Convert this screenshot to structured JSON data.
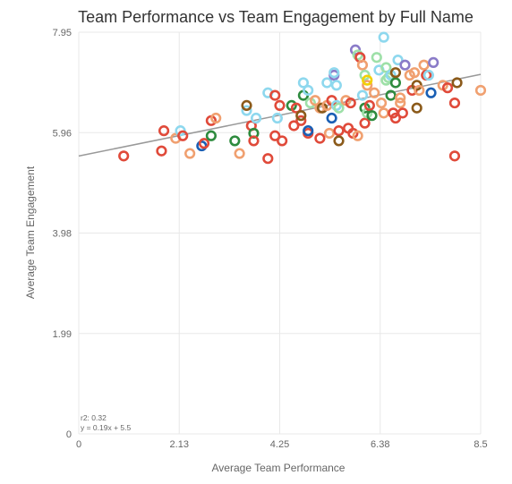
{
  "chart_data": {
    "type": "scatter",
    "title": "Team Performance vs Team Engagement by Full Name",
    "xlabel": "Average Team Performance",
    "ylabel": "Average Team Engagement",
    "xlim": [
      0,
      8.5
    ],
    "ylim": [
      0,
      7.95
    ],
    "x_ticks": [
      "0",
      "2.13",
      "4.25",
      "6.38",
      "8.5"
    ],
    "y_ticks": [
      "0",
      "1.99",
      "3.98",
      "5.96",
      "7.95"
    ],
    "grid": true,
    "regression": {
      "r2_label": "r2: 0.32",
      "equation_label": "y = 0.19x + 5.5",
      "slope": 0.19,
      "intercept": 5.5
    },
    "colors": {
      "red": "#e04a3a",
      "orange": "#f0a070",
      "lightblue": "#8ed8ee",
      "blue": "#1a5fb4",
      "green": "#2e8b3e",
      "lightgreen": "#9ee0a8",
      "brown": "#8b5a1a",
      "purple": "#8a7bc8",
      "yellow": "#f2d000",
      "trend": "#999999"
    },
    "points": [
      {
        "x": 0.95,
        "y": 5.5,
        "c": "red"
      },
      {
        "x": 1.75,
        "y": 5.6,
        "c": "red"
      },
      {
        "x": 1.8,
        "y": 6.0,
        "c": "red"
      },
      {
        "x": 2.05,
        "y": 5.85,
        "c": "orange"
      },
      {
        "x": 2.15,
        "y": 6.0,
        "c": "lightblue"
      },
      {
        "x": 2.2,
        "y": 5.9,
        "c": "red"
      },
      {
        "x": 2.35,
        "y": 5.55,
        "c": "orange"
      },
      {
        "x": 2.6,
        "y": 5.7,
        "c": "blue"
      },
      {
        "x": 2.65,
        "y": 5.75,
        "c": "red"
      },
      {
        "x": 2.8,
        "y": 5.9,
        "c": "green"
      },
      {
        "x": 2.8,
        "y": 6.2,
        "c": "red"
      },
      {
        "x": 2.9,
        "y": 6.25,
        "c": "orange"
      },
      {
        "x": 3.3,
        "y": 5.8,
        "c": "green"
      },
      {
        "x": 3.4,
        "y": 5.55,
        "c": "orange"
      },
      {
        "x": 3.55,
        "y": 6.4,
        "c": "lightblue"
      },
      {
        "x": 3.55,
        "y": 6.5,
        "c": "brown"
      },
      {
        "x": 3.65,
        "y": 6.1,
        "c": "red"
      },
      {
        "x": 3.7,
        "y": 5.95,
        "c": "green"
      },
      {
        "x": 3.7,
        "y": 5.8,
        "c": "red"
      },
      {
        "x": 3.75,
        "y": 6.25,
        "c": "lightblue"
      },
      {
        "x": 4.0,
        "y": 5.45,
        "c": "red"
      },
      {
        "x": 4.0,
        "y": 6.75,
        "c": "lightblue"
      },
      {
        "x": 4.15,
        "y": 6.7,
        "c": "red"
      },
      {
        "x": 4.15,
        "y": 5.9,
        "c": "red"
      },
      {
        "x": 4.2,
        "y": 6.25,
        "c": "lightblue"
      },
      {
        "x": 4.25,
        "y": 6.5,
        "c": "red"
      },
      {
        "x": 4.3,
        "y": 5.8,
        "c": "red"
      },
      {
        "x": 4.5,
        "y": 6.5,
        "c": "green"
      },
      {
        "x": 4.55,
        "y": 6.1,
        "c": "red"
      },
      {
        "x": 4.6,
        "y": 6.45,
        "c": "red"
      },
      {
        "x": 4.7,
        "y": 6.2,
        "c": "red"
      },
      {
        "x": 4.7,
        "y": 6.3,
        "c": "brown"
      },
      {
        "x": 4.75,
        "y": 6.95,
        "c": "lightblue"
      },
      {
        "x": 4.75,
        "y": 6.7,
        "c": "green"
      },
      {
        "x": 4.85,
        "y": 5.95,
        "c": "red"
      },
      {
        "x": 4.85,
        "y": 6.0,
        "c": "blue"
      },
      {
        "x": 4.85,
        "y": 6.8,
        "c": "lightblue"
      },
      {
        "x": 4.9,
        "y": 6.55,
        "c": "lightgreen"
      },
      {
        "x": 5.0,
        "y": 6.6,
        "c": "orange"
      },
      {
        "x": 5.1,
        "y": 6.45,
        "c": "orange"
      },
      {
        "x": 5.1,
        "y": 5.85,
        "c": "red"
      },
      {
        "x": 5.15,
        "y": 6.45,
        "c": "brown"
      },
      {
        "x": 5.25,
        "y": 6.95,
        "c": "lightblue"
      },
      {
        "x": 5.25,
        "y": 6.5,
        "c": "orange"
      },
      {
        "x": 5.3,
        "y": 5.95,
        "c": "orange"
      },
      {
        "x": 5.35,
        "y": 6.6,
        "c": "red"
      },
      {
        "x": 5.35,
        "y": 6.25,
        "c": "blue"
      },
      {
        "x": 5.4,
        "y": 7.1,
        "c": "purple"
      },
      {
        "x": 5.4,
        "y": 7.15,
        "c": "lightblue"
      },
      {
        "x": 5.45,
        "y": 6.5,
        "c": "lightblue"
      },
      {
        "x": 5.45,
        "y": 6.9,
        "c": "lightblue"
      },
      {
        "x": 5.5,
        "y": 6.45,
        "c": "lightgreen"
      },
      {
        "x": 5.5,
        "y": 6.0,
        "c": "red"
      },
      {
        "x": 5.5,
        "y": 5.8,
        "c": "brown"
      },
      {
        "x": 5.65,
        "y": 6.6,
        "c": "orange"
      },
      {
        "x": 5.7,
        "y": 6.05,
        "c": "red"
      },
      {
        "x": 5.75,
        "y": 6.55,
        "c": "red"
      },
      {
        "x": 5.8,
        "y": 5.95,
        "c": "red"
      },
      {
        "x": 5.85,
        "y": 7.6,
        "c": "purple"
      },
      {
        "x": 5.9,
        "y": 7.5,
        "c": "lightgreen"
      },
      {
        "x": 5.95,
        "y": 7.45,
        "c": "red"
      },
      {
        "x": 5.9,
        "y": 5.9,
        "c": "orange"
      },
      {
        "x": 6.0,
        "y": 7.3,
        "c": "orange"
      },
      {
        "x": 6.0,
        "y": 6.7,
        "c": "lightblue"
      },
      {
        "x": 6.05,
        "y": 6.45,
        "c": "green"
      },
      {
        "x": 6.05,
        "y": 6.15,
        "c": "red"
      },
      {
        "x": 6.05,
        "y": 7.1,
        "c": "lightgreen"
      },
      {
        "x": 6.1,
        "y": 6.9,
        "c": "orange"
      },
      {
        "x": 6.1,
        "y": 6.35,
        "c": "lightgreen"
      },
      {
        "x": 6.1,
        "y": 7.0,
        "c": "yellow"
      },
      {
        "x": 6.15,
        "y": 6.5,
        "c": "red"
      },
      {
        "x": 6.2,
        "y": 6.3,
        "c": "green"
      },
      {
        "x": 6.25,
        "y": 6.75,
        "c": "orange"
      },
      {
        "x": 6.3,
        "y": 7.45,
        "c": "lightgreen"
      },
      {
        "x": 6.35,
        "y": 7.2,
        "c": "lightblue"
      },
      {
        "x": 6.4,
        "y": 6.55,
        "c": "orange"
      },
      {
        "x": 6.45,
        "y": 6.35,
        "c": "orange"
      },
      {
        "x": 6.45,
        "y": 7.85,
        "c": "lightblue"
      },
      {
        "x": 6.5,
        "y": 7.0,
        "c": "lightgreen"
      },
      {
        "x": 6.5,
        "y": 7.25,
        "c": "lightgreen"
      },
      {
        "x": 6.55,
        "y": 7.05,
        "c": "lightgreen"
      },
      {
        "x": 6.6,
        "y": 6.7,
        "c": "green"
      },
      {
        "x": 6.6,
        "y": 7.1,
        "c": "lightblue"
      },
      {
        "x": 6.65,
        "y": 6.35,
        "c": "red"
      },
      {
        "x": 6.7,
        "y": 6.25,
        "c": "red"
      },
      {
        "x": 6.7,
        "y": 6.95,
        "c": "green"
      },
      {
        "x": 6.7,
        "y": 7.15,
        "c": "brown"
      },
      {
        "x": 6.75,
        "y": 7.4,
        "c": "lightblue"
      },
      {
        "x": 6.8,
        "y": 6.65,
        "c": "orange"
      },
      {
        "x": 6.8,
        "y": 6.55,
        "c": "orange"
      },
      {
        "x": 6.85,
        "y": 6.35,
        "c": "red"
      },
      {
        "x": 6.9,
        "y": 7.3,
        "c": "purple"
      },
      {
        "x": 7.0,
        "y": 7.1,
        "c": "orange"
      },
      {
        "x": 7.05,
        "y": 6.8,
        "c": "red"
      },
      {
        "x": 7.1,
        "y": 7.15,
        "c": "orange"
      },
      {
        "x": 7.15,
        "y": 6.45,
        "c": "brown"
      },
      {
        "x": 7.15,
        "y": 6.9,
        "c": "brown"
      },
      {
        "x": 7.2,
        "y": 6.8,
        "c": "orange"
      },
      {
        "x": 7.3,
        "y": 7.3,
        "c": "orange"
      },
      {
        "x": 7.35,
        "y": 7.1,
        "c": "red"
      },
      {
        "x": 7.4,
        "y": 7.1,
        "c": "lightblue"
      },
      {
        "x": 7.45,
        "y": 6.75,
        "c": "blue"
      },
      {
        "x": 7.5,
        "y": 7.35,
        "c": "purple"
      },
      {
        "x": 7.7,
        "y": 6.9,
        "c": "orange"
      },
      {
        "x": 7.8,
        "y": 6.85,
        "c": "red"
      },
      {
        "x": 7.95,
        "y": 6.55,
        "c": "red"
      },
      {
        "x": 7.95,
        "y": 5.5,
        "c": "red"
      },
      {
        "x": 8.0,
        "y": 6.95,
        "c": "brown"
      },
      {
        "x": 8.5,
        "y": 6.8,
        "c": "orange"
      }
    ]
  }
}
